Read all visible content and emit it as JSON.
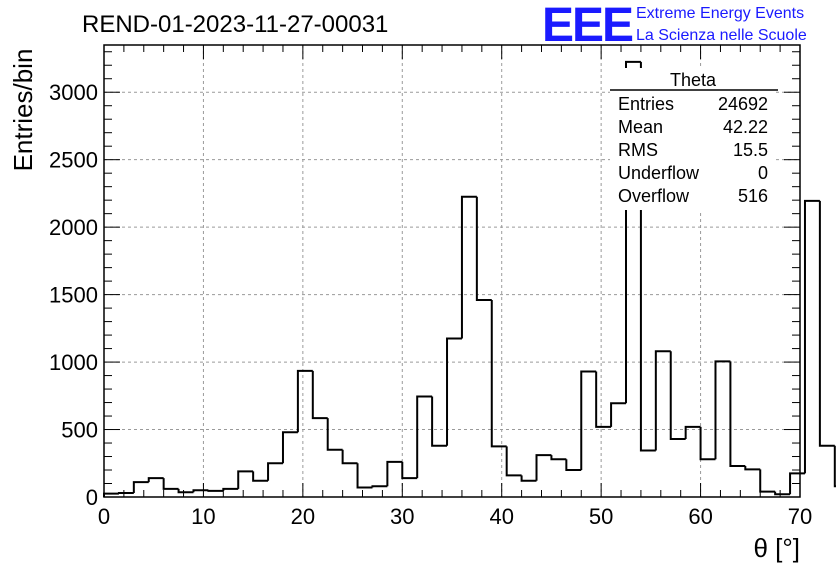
{
  "header": {
    "run_title": "REND-01-2023-11-27-00031",
    "logo_text": "EEE",
    "logo_line1": "Extreme Energy Events",
    "logo_line2": "La Scienza nelle Scuole"
  },
  "stats": {
    "title": "Theta",
    "rows": [
      {
        "label": "Entries",
        "value": "24692"
      },
      {
        "label": "Mean",
        "value": "42.22"
      },
      {
        "label": "RMS",
        "value": "15.5"
      },
      {
        "label": "Underflow",
        "value": "0"
      },
      {
        "label": "Overflow",
        "value": "516"
      }
    ]
  },
  "chart_data": {
    "type": "bar",
    "subtype": "histogram-step",
    "title": "REND-01-2023-11-27-00031",
    "xlabel": "θ [°]",
    "ylabel": "Entries/bin",
    "xlim": [
      0,
      70
    ],
    "ylim": [
      0,
      3350
    ],
    "x_ticks": [
      0,
      10,
      20,
      30,
      40,
      50,
      60,
      70
    ],
    "y_ticks": [
      0,
      500,
      1000,
      1500,
      2000,
      2500,
      3000
    ],
    "grid": true,
    "bin_width": 1.5,
    "bin_edges_start": 0,
    "values": [
      25,
      30,
      110,
      140,
      60,
      35,
      50,
      45,
      60,
      190,
      120,
      250,
      480,
      935,
      585,
      350,
      250,
      70,
      80,
      260,
      140,
      745,
      380,
      1175,
      2225,
      1460,
      375,
      160,
      120,
      310,
      280,
      200,
      930,
      520,
      695,
      3225,
      345,
      1080,
      430,
      520,
      280,
      1005,
      230,
      205,
      40,
      20,
      175,
      2195,
      380,
      80
    ]
  },
  "colors": {
    "logo": "#1a1aff",
    "grid": "#9a9a9a",
    "line": "#000000"
  }
}
